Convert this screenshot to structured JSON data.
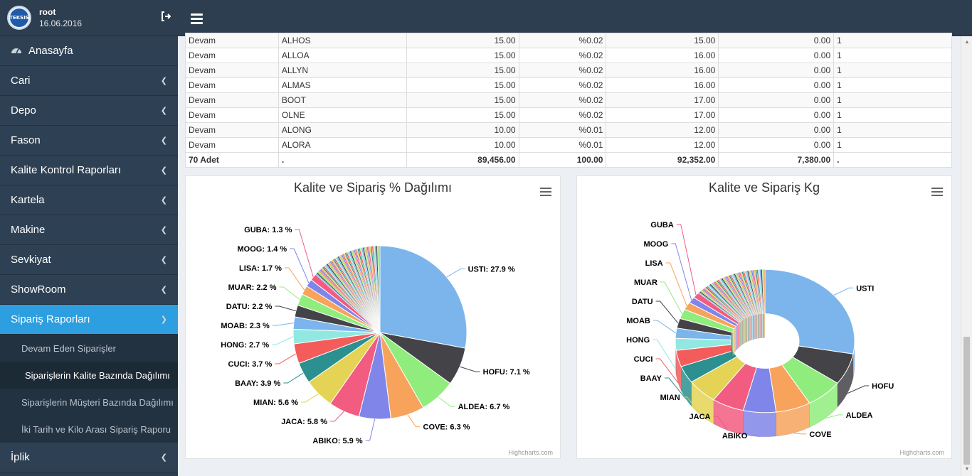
{
  "user": {
    "name": "root",
    "date": "16.06.2016",
    "logo_text": "TEKSIS"
  },
  "menu": {
    "home": "Anasayfa",
    "items": [
      "Cari",
      "Depo",
      "Fason",
      "Kalite Kontrol Raporları",
      "Kartela",
      "Makine",
      "Sevkiyat",
      "ShowRoom"
    ],
    "active": "Sipariş Raporları",
    "sub_items": [
      "Devam Eden Siparişler",
      "Siparişlerin Kalite Bazında Dağılımı",
      "Siparişlerin Müşteri Bazında Dağılımı",
      "İki Tarih ve Kilo Arası Sipariş Raporu"
    ],
    "after": "İplik"
  },
  "table": {
    "rows": [
      [
        "Devam",
        "ALHOS",
        "15.00",
        "%0.02",
        "15.00",
        "0.00",
        "1"
      ],
      [
        "Devam",
        "ALLOA",
        "15.00",
        "%0.02",
        "16.00",
        "0.00",
        "1"
      ],
      [
        "Devam",
        "ALLYN",
        "15.00",
        "%0.02",
        "16.00",
        "0.00",
        "1"
      ],
      [
        "Devam",
        "ALMAS",
        "15.00",
        "%0.02",
        "16.00",
        "0.00",
        "1"
      ],
      [
        "Devam",
        "BOOT",
        "15.00",
        "%0.02",
        "17.00",
        "0.00",
        "1"
      ],
      [
        "Devam",
        "OLNE",
        "15.00",
        "%0.02",
        "17.00",
        "0.00",
        "1"
      ],
      [
        "Devam",
        "ALONG",
        "10.00",
        "%0.01",
        "12.00",
        "0.00",
        "1"
      ],
      [
        "Devam",
        "ALORA",
        "10.00",
        "%0.01",
        "12.00",
        "0.00",
        "1"
      ]
    ],
    "total": [
      "70 Adet",
      ".",
      "89,456.00",
      "100.00",
      "92,352.00",
      "7,380.00",
      "."
    ]
  },
  "chart_data": [
    {
      "type": "pie",
      "title": "Kalite ve Sipariş % Dağılımı",
      "credits": "Highcharts.com",
      "slices": [
        {
          "name": "USTI",
          "value": 27.9,
          "label": "USTI: 27.9 %",
          "color": "#7cb5ec"
        },
        {
          "name": "HOFU",
          "value": 7.1,
          "label": "HOFU: 7.1 %",
          "color": "#434348"
        },
        {
          "name": "ALDEA",
          "value": 6.7,
          "label": "ALDEA: 6.7 %",
          "color": "#90ed7d"
        },
        {
          "name": "COVE",
          "value": 6.3,
          "label": "COVE: 6.3 %",
          "color": "#f7a35c"
        },
        {
          "name": "ABIKO",
          "value": 5.9,
          "label": "ABIKO: 5.9 %",
          "color": "#8085e9"
        },
        {
          "name": "JACA",
          "value": 5.8,
          "label": "JACA: 5.8 %",
          "color": "#f15c80"
        },
        {
          "name": "MIAN",
          "value": 5.6,
          "label": "MIAN: 5.6 %",
          "color": "#e4d354"
        },
        {
          "name": "BAAY",
          "value": 3.9,
          "label": "BAAY: 3.9 %",
          "color": "#2b908f"
        },
        {
          "name": "CUCI",
          "value": 3.7,
          "label": "CUCI: 3.7 %",
          "color": "#f45b5b"
        },
        {
          "name": "HONG",
          "value": 2.7,
          "label": "HONG: 2.7 %",
          "color": "#91e8e1"
        },
        {
          "name": "MOAB",
          "value": 2.3,
          "label": "MOAB: 2.3 %",
          "color": "#7cb5ec"
        },
        {
          "name": "DATU",
          "value": 2.2,
          "label": "DATU: 2.2 %",
          "color": "#434348"
        },
        {
          "name": "MUAR",
          "value": 2.2,
          "label": "MUAR: 2.2 %",
          "color": "#90ed7d"
        },
        {
          "name": "LISA",
          "value": 1.7,
          "label": "LISA: 1.7 %",
          "color": "#f7a35c"
        },
        {
          "name": "MOOG",
          "value": 1.4,
          "label": "MOOG: 1.4 %",
          "color": "#8085e9"
        },
        {
          "name": "GUBA",
          "value": 1.3,
          "label": "GUBA: 1.3 %",
          "color": "#f15c80"
        }
      ]
    },
    {
      "type": "pie",
      "title": "Kalite ve Sipariş Kg",
      "credits": "Highcharts.com",
      "slices": [
        {
          "name": "USTI",
          "value": 27.9,
          "label": "USTI",
          "color": "#7cb5ec"
        },
        {
          "name": "HOFU",
          "value": 7.1,
          "label": "HOFU",
          "color": "#434348"
        },
        {
          "name": "ALDEA",
          "value": 6.7,
          "label": "ALDEA",
          "color": "#90ed7d"
        },
        {
          "name": "COVE",
          "value": 6.3,
          "label": "COVE",
          "color": "#f7a35c"
        },
        {
          "name": "ABIKO",
          "value": 5.9,
          "label": "ABIKO",
          "color": "#8085e9"
        },
        {
          "name": "JACA",
          "value": 5.8,
          "label": "JACA",
          "color": "#f15c80"
        },
        {
          "name": "MIAN",
          "value": 5.6,
          "label": "MIAN",
          "color": "#e4d354"
        },
        {
          "name": "BAAY",
          "value": 3.9,
          "label": "BAAY",
          "color": "#2b908f"
        },
        {
          "name": "CUCI",
          "value": 3.7,
          "label": "CUCI",
          "color": "#f45b5b"
        },
        {
          "name": "HONG",
          "value": 2.7,
          "label": "HONG",
          "color": "#91e8e1"
        },
        {
          "name": "MOAB",
          "value": 2.3,
          "label": "MOAB",
          "color": "#7cb5ec"
        },
        {
          "name": "DATU",
          "value": 2.2,
          "label": "DATU",
          "color": "#434348"
        },
        {
          "name": "MUAR",
          "value": 2.2,
          "label": "MUAR",
          "color": "#90ed7d"
        },
        {
          "name": "LISA",
          "value": 1.7,
          "label": "LISA",
          "color": "#f7a35c"
        },
        {
          "name": "MOOG",
          "value": 1.4,
          "label": "MOOG",
          "color": "#8085e9"
        },
        {
          "name": "GUBA",
          "value": 1.3,
          "label": "GUBA",
          "color": "#f15c80"
        }
      ]
    }
  ],
  "icons": {
    "logout": "logout-icon",
    "menu": "hamburger-icon",
    "chart_menu": "chart-context-menu-icon",
    "home": "dashboard-icon"
  }
}
